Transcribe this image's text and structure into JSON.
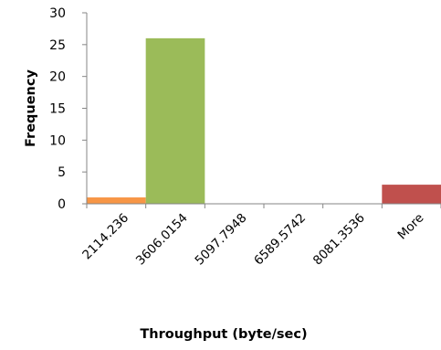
{
  "chart_data": {
    "type": "bar",
    "categories": [
      "2114.236",
      "3606.0154",
      "5097.7948",
      "6589.5742",
      "8081.3536",
      "More"
    ],
    "values": [
      1,
      26,
      0,
      0,
      0,
      3
    ],
    "colors": [
      "#f79646",
      "#9bbb59",
      "#9bbb59",
      "#9bbb59",
      "#9bbb59",
      "#c0504d"
    ],
    "title": "",
    "xlabel": "Throughput (byte/sec)",
    "ylabel": "Frequency",
    "ylim": [
      0,
      30
    ],
    "yticks": [
      0,
      5,
      10,
      15,
      20,
      25,
      30
    ],
    "grid": false,
    "legend": "none"
  }
}
